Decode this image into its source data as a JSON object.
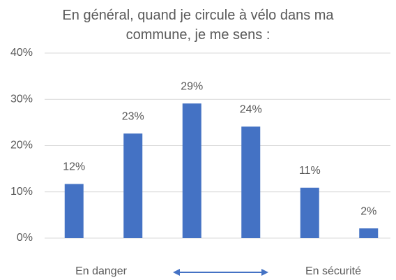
{
  "chart_data": {
    "type": "bar",
    "title": "En général, quand je circule à vélo dans ma commune, je me sens :",
    "categories": [
      null,
      null,
      null,
      null,
      null,
      null
    ],
    "values": [
      11.7,
      22.6,
      29.1,
      24.1,
      10.9,
      2.1
    ],
    "value_labels": [
      "12%",
      "23%",
      "29%",
      "24%",
      "11%",
      "2%"
    ],
    "color": "#4472c4",
    "ylim": [
      0,
      40
    ],
    "yticks": [
      {
        "value": 0,
        "label": "0%"
      },
      {
        "value": 10,
        "label": "10%"
      },
      {
        "value": 20,
        "label": "20%"
      },
      {
        "value": 30,
        "label": "30%"
      },
      {
        "value": 40,
        "label": "40%"
      }
    ],
    "grid": true,
    "annotations": [
      "En danger",
      "En sécurité"
    ]
  }
}
